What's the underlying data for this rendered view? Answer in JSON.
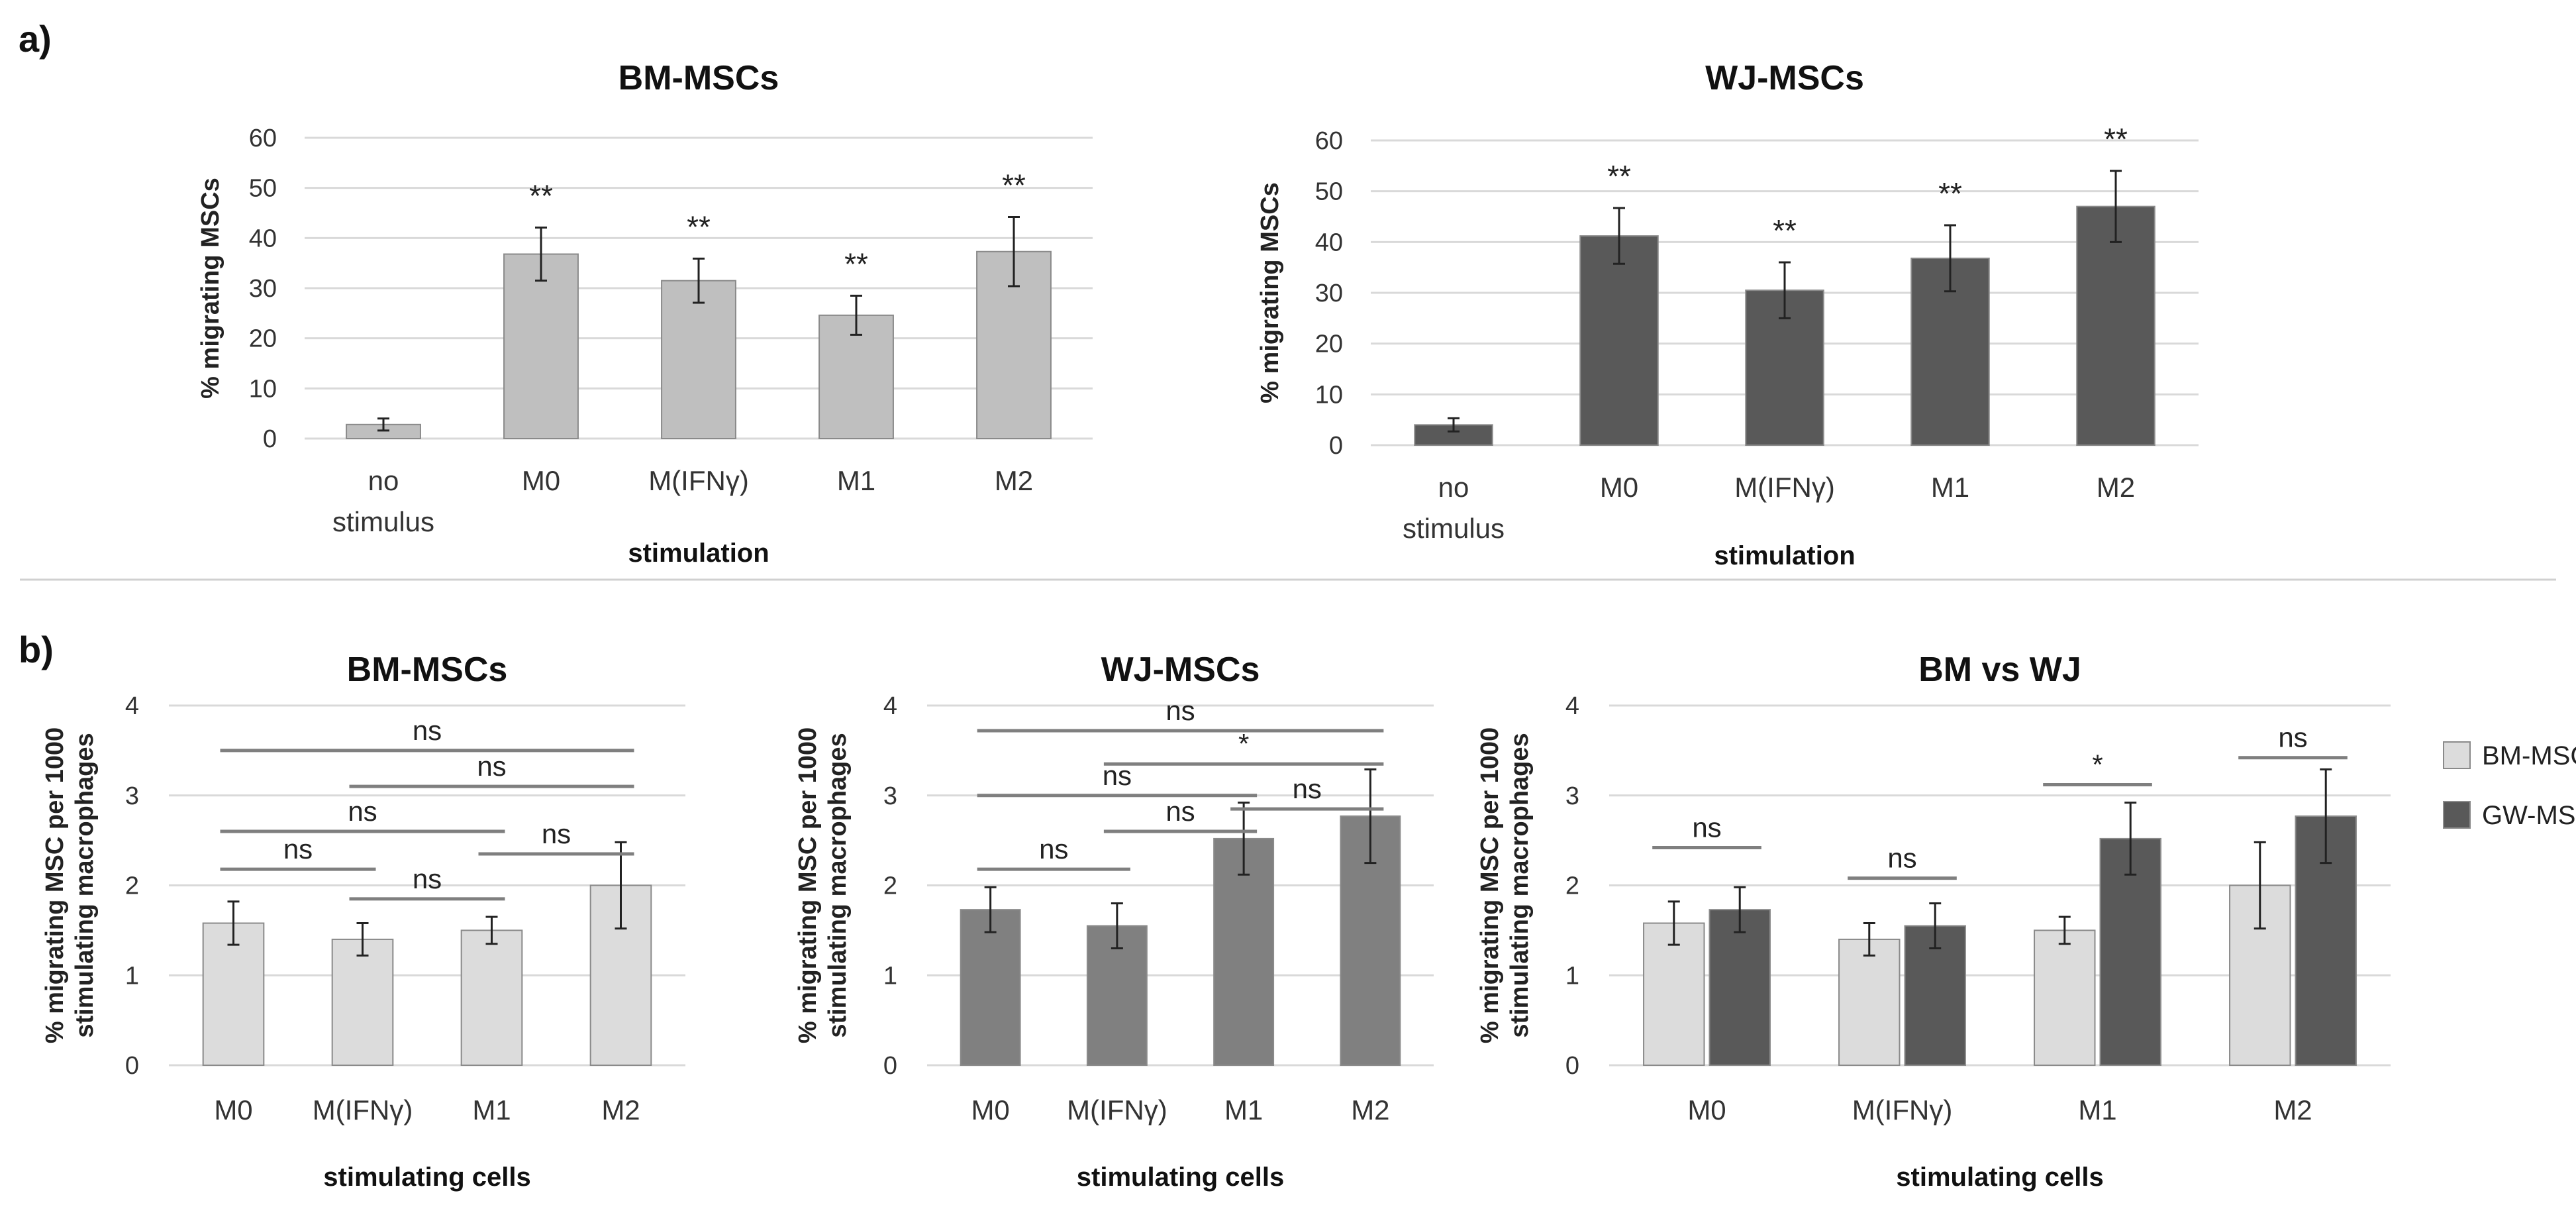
{
  "panel_labels": [
    "a)",
    "b)"
  ],
  "colors": {
    "bm_light": "#dcdcdc",
    "bm_mid": "#bfbfbf",
    "wj_dark": "#595959",
    "wj_mid": "#808080",
    "grid": "#d9d9d9",
    "bar_edge": "#8a8a8a",
    "bracket": "#7f7f7f"
  },
  "chart_data": [
    {
      "type": "bar",
      "title": "BM-MSCs",
      "categories": [
        "no stimulus",
        "M0",
        "M(IFNγ)",
        "M1",
        "M2"
      ],
      "values": [
        2.8,
        36.8,
        31.5,
        24.6,
        37.3
      ],
      "errors": [
        1.2,
        5.3,
        4.4,
        3.9,
        6.9
      ],
      "annotations": [
        "",
        "**",
        "**",
        "**",
        "**"
      ],
      "xlabel": "stimulation",
      "ylabel": "% migrating MSCs",
      "ylim": [
        0,
        60
      ],
      "yticks": [
        0,
        10,
        20,
        30,
        40,
        50,
        60
      ],
      "grid": true,
      "color": "#bfbfbf"
    },
    {
      "type": "bar",
      "title": "WJ-MSCs",
      "categories": [
        "no stimulus",
        "M0",
        "M(IFNγ)",
        "M1",
        "M2"
      ],
      "values": [
        4.0,
        41.2,
        30.5,
        36.8,
        47.0
      ],
      "errors": [
        1.3,
        5.5,
        5.5,
        6.5,
        7.0
      ],
      "annotations": [
        "",
        "**",
        "**",
        "**",
        "**"
      ],
      "xlabel": "stimulation",
      "ylabel": "% migrating MSCs",
      "ylim": [
        0,
        60
      ],
      "yticks": [
        0,
        10,
        20,
        30,
        40,
        50,
        60
      ],
      "grid": true,
      "color": "#595959"
    },
    {
      "type": "bar",
      "title": "BM-MSCs",
      "categories": [
        "M0",
        "M(IFNγ)",
        "M1",
        "M2"
      ],
      "values": [
        1.58,
        1.4,
        1.5,
        2.0
      ],
      "errors": [
        0.24,
        0.18,
        0.15,
        0.48
      ],
      "comparisons": [
        {
          "from": 0,
          "to": 3,
          "y": 3.5,
          "label": "ns"
        },
        {
          "from": 1,
          "to": 3,
          "y": 3.1,
          "label": "ns"
        },
        {
          "from": 0,
          "to": 2,
          "y": 2.6,
          "label": "ns"
        },
        {
          "from": 0,
          "to": 1,
          "y": 2.18,
          "label": "ns"
        },
        {
          "from": 2,
          "to": 3,
          "y": 2.35,
          "label": "ns"
        },
        {
          "from": 1,
          "to": 2,
          "y": 1.85,
          "label": "ns"
        }
      ],
      "xlabel": "stimulating cells",
      "ylabel": "% migrating MSC per 1000 stimulating macrophages",
      "ylim": [
        0,
        4
      ],
      "yticks": [
        0,
        1,
        2,
        3,
        4
      ],
      "grid": true,
      "color": "#dcdcdc"
    },
    {
      "type": "bar",
      "title": "WJ-MSCs",
      "categories": [
        "M0",
        "M(IFNγ)",
        "M1",
        "M2"
      ],
      "values": [
        1.73,
        1.55,
        2.52,
        2.77
      ],
      "errors": [
        0.25,
        0.25,
        0.4,
        0.52
      ],
      "comparisons": [
        {
          "from": 0,
          "to": 3,
          "y": 3.72,
          "label": "ns"
        },
        {
          "from": 1,
          "to": 3,
          "y": 3.35,
          "label": "*"
        },
        {
          "from": 0,
          "to": 2,
          "y": 3.0,
          "label": "ns"
        },
        {
          "from": 0,
          "to": 1,
          "y": 2.18,
          "label": "ns"
        },
        {
          "from": 1,
          "to": 2,
          "y": 2.6,
          "label": "ns"
        },
        {
          "from": 2,
          "to": 3,
          "y": 2.85,
          "label": "ns"
        }
      ],
      "xlabel": "stimulating cells",
      "ylabel": "% migrating MSC per 1000 stimulating macrophages",
      "ylim": [
        0,
        4
      ],
      "yticks": [
        0,
        1,
        2,
        3,
        4
      ],
      "grid": true,
      "color": "#808080"
    },
    {
      "type": "bar",
      "title": "BM vs WJ",
      "categories": [
        "M0",
        "M(IFNγ)",
        "M1",
        "M2"
      ],
      "series": [
        {
          "name": "BM-MSC",
          "values": [
            1.58,
            1.4,
            1.5,
            2.0
          ],
          "errors": [
            0.24,
            0.18,
            0.15,
            0.48
          ],
          "color": "#dcdcdc"
        },
        {
          "name": "GW-MSC",
          "values": [
            1.73,
            1.55,
            2.52,
            2.77
          ],
          "errors": [
            0.25,
            0.25,
            0.4,
            0.52
          ],
          "color": "#595959"
        }
      ],
      "comparisons": [
        {
          "group": 0,
          "y": 2.42,
          "label": "ns"
        },
        {
          "group": 1,
          "y": 2.08,
          "label": "ns"
        },
        {
          "group": 2,
          "y": 3.12,
          "label": "*"
        },
        {
          "group": 3,
          "y": 3.42,
          "label": "ns"
        }
      ],
      "xlabel": "stimulating cells",
      "ylabel": "% migrating MSC per 1000 stimulating macrophages",
      "ylim": [
        0,
        4
      ],
      "yticks": [
        0,
        1,
        2,
        3,
        4
      ],
      "grid": true,
      "legend": "right"
    }
  ]
}
